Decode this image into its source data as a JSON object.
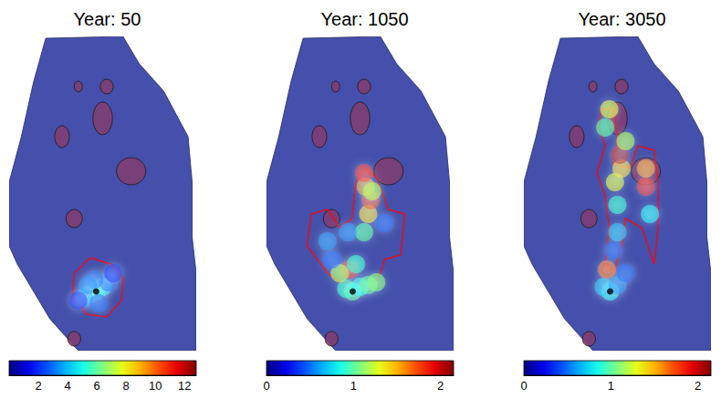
{
  "chart_data": [
    {
      "type": "heatmap",
      "title": "Year: 50",
      "xlim": [
        0,
        230
      ],
      "ylim": [
        0,
        345
      ],
      "tick_labels": false,
      "domain": [
        [
          45,
          343
        ],
        [
          140,
          345
        ],
        [
          160,
          315
        ],
        [
          190,
          285
        ],
        [
          220,
          235
        ],
        [
          225,
          185
        ],
        [
          225,
          125
        ],
        [
          230,
          85
        ],
        [
          230,
          0
        ],
        [
          85,
          0
        ],
        [
          50,
          35
        ],
        [
          10,
          95
        ],
        [
          0,
          115
        ],
        [
          0,
          185
        ],
        [
          15,
          235
        ],
        [
          30,
          295
        ]
      ],
      "low_zones": [
        [
          115,
          255,
          12,
          18
        ],
        [
          65,
          235,
          9,
          12
        ],
        [
          120,
          290,
          8,
          8
        ],
        [
          150,
          197,
          18,
          15
        ],
        [
          80,
          145,
          10,
          10
        ],
        [
          85,
          290,
          5,
          6
        ],
        [
          80,
          13,
          8,
          8
        ]
      ],
      "plume": [
        [
          107,
          65,
          6
        ],
        [
          100,
          62,
          5
        ],
        [
          115,
          70,
          4.5
        ],
        [
          92,
          58,
          3.5
        ],
        [
          122,
          75,
          3
        ],
        [
          105,
          78,
          3
        ],
        [
          110,
          52,
          3
        ],
        [
          85,
          55,
          2
        ],
        [
          128,
          85,
          2
        ],
        [
          97,
          72,
          3.5
        ]
      ],
      "plume_outline": [
        [
          100,
          102
        ],
        [
          125,
          95
        ],
        [
          140,
          80
        ],
        [
          138,
          55
        ],
        [
          120,
          37
        ],
        [
          95,
          40
        ],
        [
          78,
          60
        ],
        [
          80,
          85
        ]
      ],
      "wells": [
        [
          107,
          65
        ]
      ],
      "colorbar": {
        "range": [
          0,
          12.8
        ],
        "ticks": [
          2,
          4,
          6,
          8,
          10,
          12
        ]
      }
    },
    {
      "type": "heatmap",
      "title": "Year: 1050",
      "xlim": [
        0,
        230
      ],
      "ylim": [
        0,
        345
      ],
      "tick_labels": false,
      "domain": [
        [
          45,
          343
        ],
        [
          140,
          345
        ],
        [
          160,
          315
        ],
        [
          190,
          285
        ],
        [
          220,
          235
        ],
        [
          225,
          185
        ],
        [
          225,
          125
        ],
        [
          230,
          85
        ],
        [
          230,
          0
        ],
        [
          85,
          0
        ],
        [
          50,
          35
        ],
        [
          10,
          95
        ],
        [
          0,
          115
        ],
        [
          0,
          185
        ],
        [
          15,
          235
        ],
        [
          30,
          295
        ]
      ],
      "low_zones": [
        [
          115,
          255,
          12,
          18
        ],
        [
          65,
          235,
          9,
          12
        ],
        [
          120,
          290,
          8,
          8
        ],
        [
          150,
          197,
          18,
          15
        ],
        [
          80,
          145,
          10,
          10
        ],
        [
          85,
          290,
          5,
          6
        ],
        [
          80,
          13,
          8,
          8
        ],
        [
          102,
          89,
          6,
          6
        ]
      ],
      "plume": [
        [
          106,
          65,
          1
        ],
        [
          98,
          68,
          0.9
        ],
        [
          115,
          70,
          0.8
        ],
        [
          102,
          89,
          1.9
        ],
        [
          125,
          72,
          1
        ],
        [
          135,
          75,
          1.1
        ],
        [
          90,
          85,
          1.2
        ],
        [
          110,
          95,
          0.9
        ],
        [
          120,
          130,
          1
        ],
        [
          125,
          150,
          1.4
        ],
        [
          128,
          165,
          1.7
        ],
        [
          122,
          180,
          1.5
        ],
        [
          120,
          195,
          1.8
        ],
        [
          130,
          175,
          1.2
        ],
        [
          100,
          130,
          0.6
        ],
        [
          80,
          100,
          0.5
        ],
        [
          75,
          120,
          0.6
        ],
        [
          145,
          140,
          0.5
        ]
      ],
      "plume_outline": [
        [
          55,
          150
        ],
        [
          75,
          155
        ],
        [
          90,
          135
        ],
        [
          105,
          145
        ],
        [
          110,
          185
        ],
        [
          120,
          200
        ],
        [
          135,
          190
        ],
        [
          150,
          155
        ],
        [
          170,
          150
        ],
        [
          165,
          105
        ],
        [
          145,
          100
        ],
        [
          140,
          85
        ],
        [
          125,
          65
        ],
        [
          115,
          75
        ],
        [
          90,
          75
        ],
        [
          75,
          85
        ],
        [
          50,
          115
        ]
      ],
      "wells": [
        [
          106,
          65
        ]
      ],
      "colorbar": {
        "range": [
          0,
          2.15
        ],
        "ticks": [
          0,
          1,
          2
        ]
      }
    },
    {
      "type": "heatmap",
      "title": "Year: 3050",
      "xlim": [
        0,
        230
      ],
      "ylim": [
        0,
        345
      ],
      "tick_labels": false,
      "domain": [
        [
          45,
          343
        ],
        [
          140,
          345
        ],
        [
          160,
          315
        ],
        [
          190,
          285
        ],
        [
          220,
          235
        ],
        [
          225,
          185
        ],
        [
          225,
          125
        ],
        [
          230,
          85
        ],
        [
          230,
          0
        ],
        [
          85,
          0
        ],
        [
          50,
          35
        ],
        [
          10,
          95
        ],
        [
          0,
          115
        ],
        [
          0,
          185
        ],
        [
          15,
          235
        ],
        [
          30,
          295
        ]
      ],
      "low_zones": [
        [
          115,
          255,
          12,
          18
        ],
        [
          65,
          235,
          9,
          12
        ],
        [
          120,
          290,
          8,
          8
        ],
        [
          150,
          197,
          18,
          15
        ],
        [
          80,
          145,
          10,
          10
        ],
        [
          85,
          290,
          5,
          6
        ],
        [
          80,
          13,
          8,
          8
        ],
        [
          102,
          89,
          6,
          6
        ]
      ],
      "plume": [
        [
          106,
          65,
          0.8
        ],
        [
          98,
          70,
          0.7
        ],
        [
          115,
          72,
          0.6
        ],
        [
          102,
          89,
          1.6
        ],
        [
          125,
          85,
          0.5
        ],
        [
          115,
          130,
          0.7
        ],
        [
          115,
          160,
          0.9
        ],
        [
          112,
          185,
          1.3
        ],
        [
          120,
          200,
          1.4
        ],
        [
          118,
          215,
          2
        ],
        [
          125,
          230,
          1.2
        ],
        [
          150,
          200,
          1.5
        ],
        [
          150,
          180,
          1.8
        ],
        [
          100,
          245,
          1
        ],
        [
          105,
          265,
          1.3
        ],
        [
          155,
          150,
          0.8
        ],
        [
          110,
          110,
          0.5
        ]
      ],
      "plume_outline": [
        [
          95,
          265
        ],
        [
          110,
          265
        ],
        [
          115,
          235
        ],
        [
          110,
          205
        ],
        [
          130,
          200
        ],
        [
          140,
          225
        ],
        [
          160,
          220
        ],
        [
          165,
          185
        ],
        [
          165,
          135
        ],
        [
          160,
          95
        ],
        [
          145,
          135
        ],
        [
          125,
          145
        ],
        [
          120,
          115
        ],
        [
          110,
          85
        ],
        [
          100,
          95
        ],
        [
          105,
          135
        ],
        [
          100,
          170
        ],
        [
          90,
          195
        ],
        [
          100,
          225
        ],
        [
          92,
          245
        ]
      ],
      "wells": [
        [
          106,
          65
        ]
      ],
      "colorbar": {
        "range": [
          0,
          2.15
        ],
        "ticks": [
          0,
          1,
          2
        ]
      }
    }
  ]
}
